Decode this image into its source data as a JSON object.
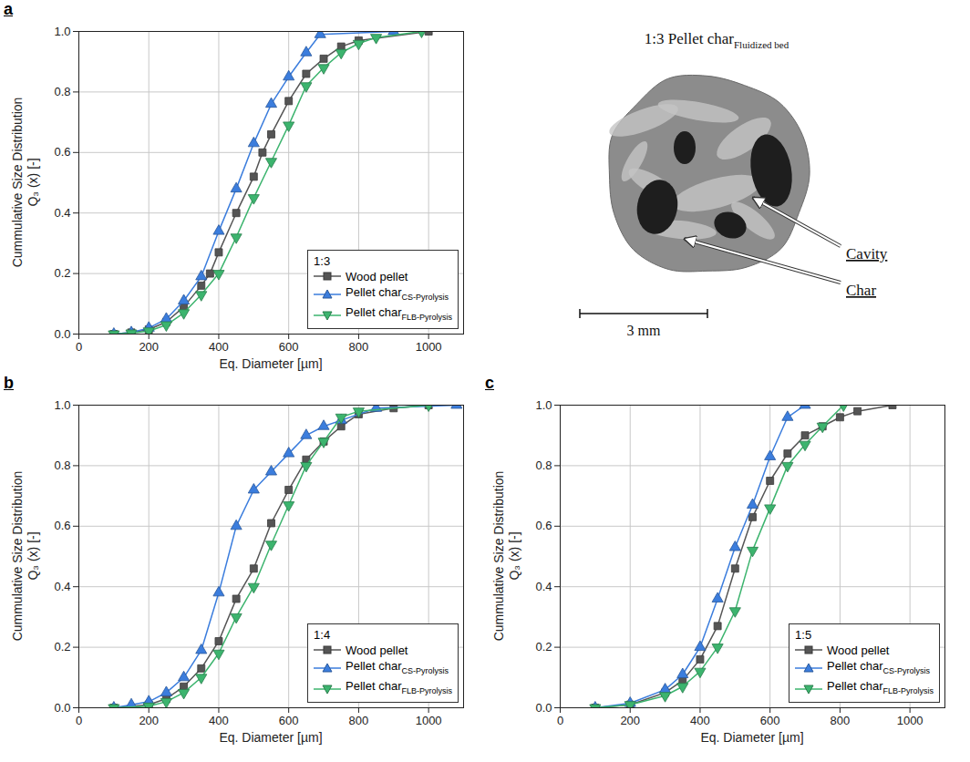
{
  "chart_data": [
    {
      "type": "line",
      "panel": "a",
      "xlabel": "Eq. Diameter [µm]",
      "ylabel": [
        "Cummulative Size Distribution",
        "Q₃ (x) [-]"
      ],
      "xlim": [
        0,
        1100
      ],
      "xticks": [
        0,
        200,
        400,
        600,
        800,
        1000
      ],
      "ylim": [
        0,
        1
      ],
      "yticks": [
        {
          "value": 0,
          "label": "0.0"
        },
        {
          "value": 0.2,
          "label": "0.2"
        },
        {
          "value": 0.4,
          "label": "0.4"
        },
        {
          "value": 0.6,
          "label": "0.6"
        },
        {
          "value": 0.8,
          "label": "0.8"
        },
        {
          "value": 1,
          "label": "1.0"
        }
      ],
      "grid": true,
      "legend": "bottom-right",
      "legend_title": "1:3",
      "series": [
        {
          "name": "Wood pellet",
          "color": "#555555",
          "marker": "square",
          "x": [
            100,
            150,
            200,
            250,
            300,
            350,
            375,
            400,
            450,
            500,
            525,
            550,
            600,
            650,
            700,
            750,
            800,
            1000
          ],
          "values": [
            0,
            0.005,
            0.015,
            0.04,
            0.09,
            0.16,
            0.2,
            0.27,
            0.4,
            0.52,
            0.6,
            0.66,
            0.77,
            0.86,
            0.91,
            0.95,
            0.97,
            1.0
          ]
        },
        {
          "name": "Pellet char",
          "name_subscript": "CS-Pyrolysis",
          "color": "#3b7ddd",
          "marker": "triangle",
          "x": [
            100,
            150,
            200,
            250,
            300,
            350,
            400,
            450,
            500,
            550,
            600,
            650,
            690,
            900
          ],
          "values": [
            0,
            0.005,
            0.02,
            0.05,
            0.11,
            0.19,
            0.34,
            0.48,
            0.63,
            0.76,
            0.85,
            0.93,
            0.99,
            1.0
          ]
        },
        {
          "name": "Pellet char",
          "name_subscript": "FLB-Pyrolysis",
          "color": "#3cb46e",
          "marker": "triangle-down",
          "x": [
            100,
            150,
            200,
            250,
            300,
            350,
            400,
            450,
            500,
            550,
            600,
            650,
            700,
            750,
            800,
            850,
            980
          ],
          "values": [
            0,
            0.003,
            0.01,
            0.03,
            0.07,
            0.13,
            0.2,
            0.32,
            0.45,
            0.57,
            0.69,
            0.82,
            0.88,
            0.93,
            0.96,
            0.98,
            1.0
          ]
        }
      ]
    },
    {
      "type": "line",
      "panel": "b",
      "xlabel": "Eq. Diameter [µm]",
      "ylabel": [
        "Cummulative Size Distribution",
        "Q₃ (x) [-]"
      ],
      "xlim": [
        0,
        1100
      ],
      "xticks": [
        0,
        200,
        400,
        600,
        800,
        1000
      ],
      "ylim": [
        0,
        1
      ],
      "yticks": [
        {
          "value": 0,
          "label": "0.0"
        },
        {
          "value": 0.2,
          "label": "0.2"
        },
        {
          "value": 0.4,
          "label": "0.4"
        },
        {
          "value": 0.6,
          "label": "0.6"
        },
        {
          "value": 0.8,
          "label": "0.8"
        },
        {
          "value": 1,
          "label": "1.0"
        }
      ],
      "grid": true,
      "legend": "bottom-right",
      "legend_title": "1:4",
      "series": [
        {
          "name": "Wood pellet",
          "color": "#555555",
          "marker": "square",
          "x": [
            100,
            200,
            250,
            300,
            350,
            400,
            450,
            500,
            550,
            600,
            650,
            700,
            750,
            800,
            900,
            1000
          ],
          "values": [
            0,
            0.01,
            0.03,
            0.07,
            0.13,
            0.22,
            0.36,
            0.46,
            0.61,
            0.72,
            0.82,
            0.88,
            0.93,
            0.97,
            0.99,
            1.0
          ]
        },
        {
          "name": "Pellet char",
          "name_subscript": "CS-Pyrolysis",
          "color": "#3b7ddd",
          "marker": "triangle",
          "x": [
            100,
            150,
            200,
            250,
            300,
            350,
            400,
            450,
            500,
            550,
            600,
            650,
            700,
            750,
            850,
            1080
          ],
          "values": [
            0,
            0.01,
            0.02,
            0.05,
            0.1,
            0.19,
            0.38,
            0.6,
            0.72,
            0.78,
            0.84,
            0.9,
            0.93,
            0.95,
            0.99,
            1.0
          ]
        },
        {
          "name": "Pellet char",
          "name_subscript": "FLB-Pyrolysis",
          "color": "#3cb46e",
          "marker": "triangle-down",
          "x": [
            100,
            200,
            250,
            300,
            350,
            400,
            450,
            500,
            550,
            600,
            650,
            700,
            750,
            800,
            1000
          ],
          "values": [
            0,
            0.005,
            0.02,
            0.05,
            0.1,
            0.18,
            0.3,
            0.4,
            0.54,
            0.67,
            0.8,
            0.88,
            0.96,
            0.98,
            1.0
          ]
        }
      ]
    },
    {
      "type": "line",
      "panel": "c",
      "xlabel": "Eq. Diameter [µm]",
      "ylabel": [
        "Cummulative Size Distribution",
        "Q₃ (x) [-]"
      ],
      "xlim": [
        0,
        1100
      ],
      "xticks": [
        0,
        200,
        400,
        600,
        800,
        1000
      ],
      "ylim": [
        0,
        1
      ],
      "yticks": [
        {
          "value": 0,
          "label": "0.0"
        },
        {
          "value": 0.2,
          "label": "0.2"
        },
        {
          "value": 0.4,
          "label": "0.4"
        },
        {
          "value": 0.6,
          "label": "0.6"
        },
        {
          "value": 0.8,
          "label": "0.8"
        },
        {
          "value": 1,
          "label": "1.0"
        }
      ],
      "grid": true,
      "legend": "bottom-right",
      "legend_title": "1:5",
      "series": [
        {
          "name": "Wood pellet",
          "color": "#555555",
          "marker": "square",
          "x": [
            100,
            200,
            300,
            350,
            400,
            450,
            500,
            550,
            600,
            650,
            700,
            750,
            800,
            850,
            950
          ],
          "values": [
            0,
            0.01,
            0.05,
            0.09,
            0.16,
            0.27,
            0.46,
            0.63,
            0.75,
            0.84,
            0.9,
            0.93,
            0.96,
            0.98,
            1.0
          ]
        },
        {
          "name": "Pellet char",
          "name_subscript": "CS-Pyrolysis",
          "color": "#3b7ddd",
          "marker": "triangle",
          "x": [
            100,
            200,
            300,
            350,
            400,
            450,
            500,
            550,
            600,
            650,
            700
          ],
          "values": [
            0,
            0.015,
            0.06,
            0.11,
            0.2,
            0.36,
            0.53,
            0.67,
            0.83,
            0.96,
            1.0
          ]
        },
        {
          "name": "Pellet char",
          "name_subscript": "FLB-Pyrolysis",
          "color": "#3cb46e",
          "marker": "triangle-down",
          "x": [
            100,
            200,
            300,
            350,
            400,
            450,
            500,
            550,
            600,
            650,
            700,
            750,
            810
          ],
          "values": [
            0,
            0.01,
            0.04,
            0.07,
            0.12,
            0.2,
            0.32,
            0.52,
            0.66,
            0.8,
            0.87,
            0.93,
            1.0
          ]
        }
      ]
    }
  ],
  "image_panel": {
    "title": "1:3 Pellet char",
    "title_subscript": "Fluidized bed",
    "labels": [
      "Cavity",
      "Char"
    ],
    "scale_bar": "3 mm"
  }
}
